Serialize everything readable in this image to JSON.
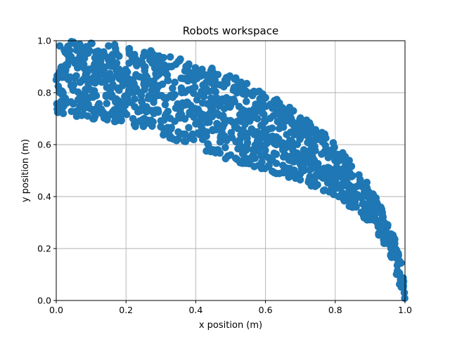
{
  "chart_data": {
    "type": "scatter",
    "title": "Robots workspace",
    "xlabel": "x position (m)",
    "ylabel": "y position (m)",
    "xlim": [
      0.0,
      1.0
    ],
    "ylim": [
      0.0,
      1.0
    ],
    "xticks": [
      "0.0",
      "0.2",
      "0.4",
      "0.6",
      "0.8",
      "1.0"
    ],
    "yticks": [
      "0.0",
      "0.2",
      "0.4",
      "0.6",
      "0.8",
      "1.0"
    ],
    "grid": true,
    "marker_color": "#1f77b4",
    "region": {
      "description_outer_radius": 1.0,
      "inner_boundary_samples": [
        {
          "x": 0.0,
          "y": 0.72
        },
        {
          "x": 0.1,
          "y": 0.7
        },
        {
          "x": 0.2,
          "y": 0.68
        },
        {
          "x": 0.3,
          "y": 0.64
        },
        {
          "x": 0.4,
          "y": 0.58
        },
        {
          "x": 0.5,
          "y": 0.54
        },
        {
          "x": 0.6,
          "y": 0.5
        },
        {
          "x": 0.7,
          "y": 0.46
        },
        {
          "x": 0.8,
          "y": 0.4
        },
        {
          "x": 0.9,
          "y": 0.3
        },
        {
          "x": 0.95,
          "y": 0.2
        },
        {
          "x": 1.0,
          "y": 0.0
        }
      ]
    },
    "series": [
      {
        "points": [
          {
            "x": 0.01,
            "y": 0.98
          },
          {
            "x": 0.03,
            "y": 0.95
          },
          {
            "x": 0.05,
            "y": 0.99
          },
          {
            "x": 0.08,
            "y": 0.97
          },
          {
            "x": 0.1,
            "y": 0.99
          },
          {
            "x": 0.12,
            "y": 0.96
          },
          {
            "x": 0.15,
            "y": 0.98
          },
          {
            "x": 0.17,
            "y": 0.97
          },
          {
            "x": 0.02,
            "y": 0.9
          },
          {
            "x": 0.04,
            "y": 0.86
          },
          {
            "x": 0.06,
            "y": 0.92
          },
          {
            "x": 0.09,
            "y": 0.88
          },
          {
            "x": 0.11,
            "y": 0.91
          },
          {
            "x": 0.13,
            "y": 0.87
          },
          {
            "x": 0.16,
            "y": 0.93
          },
          {
            "x": 0.18,
            "y": 0.89
          },
          {
            "x": 0.01,
            "y": 0.8
          },
          {
            "x": 0.03,
            "y": 0.76
          },
          {
            "x": 0.05,
            "y": 0.83
          },
          {
            "x": 0.07,
            "y": 0.78
          },
          {
            "x": 0.1,
            "y": 0.81
          },
          {
            "x": 0.12,
            "y": 0.75
          },
          {
            "x": 0.14,
            "y": 0.84
          },
          {
            "x": 0.16,
            "y": 0.79
          },
          {
            "x": 0.02,
            "y": 0.72
          },
          {
            "x": 0.06,
            "y": 0.73
          },
          {
            "x": 0.09,
            "y": 0.71
          },
          {
            "x": 0.13,
            "y": 0.72
          },
          {
            "x": 0.17,
            "y": 0.7
          },
          {
            "x": 0.19,
            "y": 0.74
          },
          {
            "x": 0.21,
            "y": 0.95
          },
          {
            "x": 0.23,
            "y": 0.91
          },
          {
            "x": 0.25,
            "y": 0.94
          },
          {
            "x": 0.28,
            "y": 0.92
          },
          {
            "x": 0.3,
            "y": 0.93
          },
          {
            "x": 0.33,
            "y": 0.9
          },
          {
            "x": 0.35,
            "y": 0.92
          },
          {
            "x": 0.38,
            "y": 0.91
          },
          {
            "x": 0.22,
            "y": 0.85
          },
          {
            "x": 0.24,
            "y": 0.8
          },
          {
            "x": 0.26,
            "y": 0.86
          },
          {
            "x": 0.29,
            "y": 0.82
          },
          {
            "x": 0.31,
            "y": 0.78
          },
          {
            "x": 0.34,
            "y": 0.84
          },
          {
            "x": 0.36,
            "y": 0.8
          },
          {
            "x": 0.39,
            "y": 0.86
          },
          {
            "x": 0.22,
            "y": 0.7
          },
          {
            "x": 0.25,
            "y": 0.67
          },
          {
            "x": 0.28,
            "y": 0.72
          },
          {
            "x": 0.31,
            "y": 0.65
          },
          {
            "x": 0.34,
            "y": 0.69
          },
          {
            "x": 0.37,
            "y": 0.64
          },
          {
            "x": 0.4,
            "y": 0.68
          },
          {
            "x": 0.41,
            "y": 0.88
          },
          {
            "x": 0.43,
            "y": 0.84
          },
          {
            "x": 0.45,
            "y": 0.87
          },
          {
            "x": 0.47,
            "y": 0.83
          },
          {
            "x": 0.49,
            "y": 0.85
          },
          {
            "x": 0.51,
            "y": 0.82
          },
          {
            "x": 0.53,
            "y": 0.84
          },
          {
            "x": 0.55,
            "y": 0.8
          },
          {
            "x": 0.42,
            "y": 0.76
          },
          {
            "x": 0.44,
            "y": 0.72
          },
          {
            "x": 0.46,
            "y": 0.78
          },
          {
            "x": 0.48,
            "y": 0.7
          },
          {
            "x": 0.5,
            "y": 0.75
          },
          {
            "x": 0.52,
            "y": 0.69
          },
          {
            "x": 0.54,
            "y": 0.73
          },
          {
            "x": 0.56,
            "y": 0.66
          },
          {
            "x": 0.42,
            "y": 0.62
          },
          {
            "x": 0.45,
            "y": 0.58
          },
          {
            "x": 0.47,
            "y": 0.61
          },
          {
            "x": 0.5,
            "y": 0.56
          },
          {
            "x": 0.53,
            "y": 0.59
          },
          {
            "x": 0.56,
            "y": 0.55
          },
          {
            "x": 0.58,
            "y": 0.6
          },
          {
            "x": 0.6,
            "y": 0.78
          },
          {
            "x": 0.62,
            "y": 0.74
          },
          {
            "x": 0.64,
            "y": 0.76
          },
          {
            "x": 0.66,
            "y": 0.72
          },
          {
            "x": 0.68,
            "y": 0.73
          },
          {
            "x": 0.7,
            "y": 0.7
          },
          {
            "x": 0.61,
            "y": 0.66
          },
          {
            "x": 0.63,
            "y": 0.62
          },
          {
            "x": 0.65,
            "y": 0.68
          },
          {
            "x": 0.67,
            "y": 0.6
          },
          {
            "x": 0.69,
            "y": 0.64
          },
          {
            "x": 0.71,
            "y": 0.58
          },
          {
            "x": 0.62,
            "y": 0.54
          },
          {
            "x": 0.65,
            "y": 0.52
          },
          {
            "x": 0.68,
            "y": 0.55
          },
          {
            "x": 0.71,
            "y": 0.5
          },
          {
            "x": 0.73,
            "y": 0.66
          },
          {
            "x": 0.75,
            "y": 0.62
          },
          {
            "x": 0.77,
            "y": 0.64
          },
          {
            "x": 0.79,
            "y": 0.58
          },
          {
            "x": 0.74,
            "y": 0.54
          },
          {
            "x": 0.76,
            "y": 0.5
          },
          {
            "x": 0.78,
            "y": 0.55
          },
          {
            "x": 0.8,
            "y": 0.47
          },
          {
            "x": 0.82,
            "y": 0.56
          },
          {
            "x": 0.84,
            "y": 0.51
          },
          {
            "x": 0.83,
            "y": 0.45
          },
          {
            "x": 0.85,
            "y": 0.48
          },
          {
            "x": 0.81,
            "y": 0.4
          },
          {
            "x": 0.84,
            "y": 0.42
          },
          {
            "x": 0.87,
            "y": 0.45
          },
          {
            "x": 0.88,
            "y": 0.4
          },
          {
            "x": 0.86,
            "y": 0.36
          },
          {
            "x": 0.89,
            "y": 0.34
          },
          {
            "x": 0.9,
            "y": 0.38
          },
          {
            "x": 0.91,
            "y": 0.31
          },
          {
            "x": 0.92,
            "y": 0.35
          },
          {
            "x": 0.93,
            "y": 0.28
          },
          {
            "x": 0.94,
            "y": 0.3
          },
          {
            "x": 0.95,
            "y": 0.25
          },
          {
            "x": 0.94,
            "y": 0.22
          },
          {
            "x": 0.96,
            "y": 0.2
          },
          {
            "x": 0.97,
            "y": 0.17
          },
          {
            "x": 0.98,
            "y": 0.14
          },
          {
            "x": 0.98,
            "y": 0.1
          },
          {
            "x": 0.99,
            "y": 0.08
          },
          {
            "x": 0.995,
            "y": 0.05
          },
          {
            "x": 0.998,
            "y": 0.03
          }
        ]
      }
    ]
  }
}
